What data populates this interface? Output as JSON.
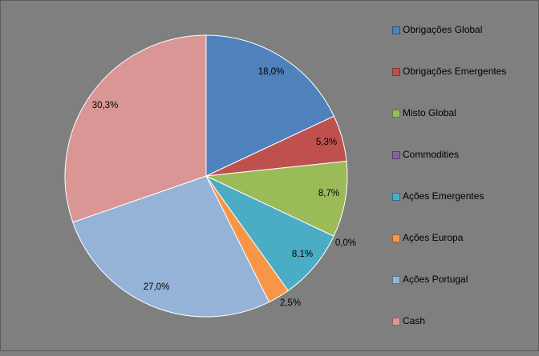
{
  "chart_data": {
    "type": "pie",
    "title": "",
    "legend_position": "right",
    "slices": [
      {
        "label": "Obrigações Global",
        "value": 18.0,
        "value_label": "18,0%",
        "color": "#4f81bd"
      },
      {
        "label": "Obrigações Emergentes",
        "value": 5.3,
        "value_label": "5,3%",
        "color": "#c0504d"
      },
      {
        "label": "Misto Global",
        "value": 8.7,
        "value_label": "8,7%",
        "color": "#9bbb59"
      },
      {
        "label": "Commodities",
        "value": 0.0,
        "value_label": "0,0%",
        "color": "#8064a2"
      },
      {
        "label": "Ações Emergentes",
        "value": 8.1,
        "value_label": "8,1%",
        "color": "#4bacc6"
      },
      {
        "label": "Ações Europa",
        "value": 2.5,
        "value_label": "2,5%",
        "color": "#f79646"
      },
      {
        "label": "Ações Portugal",
        "value": 27.0,
        "value_label": "27,0%",
        "color": "#95b3d7"
      },
      {
        "label": "Cash",
        "value": 30.3,
        "value_label": "30,3%",
        "color": "#d99694"
      }
    ]
  }
}
